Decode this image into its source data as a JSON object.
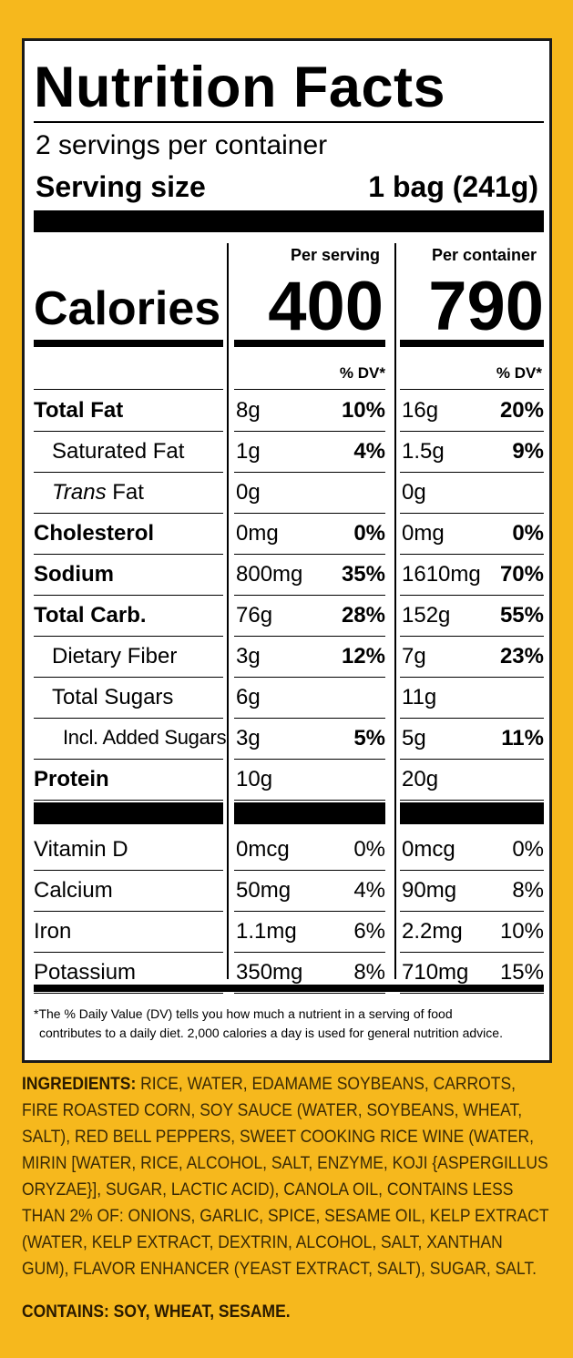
{
  "label": {
    "title": "Nutrition Facts",
    "servings_per_container": "2 servings per container",
    "serving_size_label": "Serving size",
    "serving_size_value": "1 bag (241g)",
    "per_serving_label": "Per serving",
    "per_container_label": "Per container",
    "calories_label": "Calories",
    "calories_per_serving": "400",
    "calories_per_container": "790",
    "dv_header": "% DV*",
    "nutrients": [
      {
        "name": "Total Fat",
        "serv_amt": "8g",
        "serv_dv": "10%",
        "cont_amt": "16g",
        "cont_dv": "20%"
      },
      {
        "name": "Saturated Fat",
        "serv_amt": "1g",
        "serv_dv": "4%",
        "cont_amt": "1.5g",
        "cont_dv": "9%"
      },
      {
        "name_italic": "Trans",
        "name": " Fat",
        "serv_amt": "0g",
        "serv_dv": "",
        "cont_amt": "0g",
        "cont_dv": ""
      },
      {
        "name": "Cholesterol",
        "serv_amt": "0mg",
        "serv_dv": "0%",
        "cont_amt": "0mg",
        "cont_dv": "0%"
      },
      {
        "name": "Sodium",
        "serv_amt": "800mg",
        "serv_dv": "35%",
        "cont_amt": "1610mg",
        "cont_dv": "70%"
      },
      {
        "name": "Total Carb.",
        "serv_amt": "76g",
        "serv_dv": "28%",
        "cont_amt": "152g",
        "cont_dv": "55%"
      },
      {
        "name": "Dietary Fiber",
        "serv_amt": "3g",
        "serv_dv": "12%",
        "cont_amt": "7g",
        "cont_dv": "23%"
      },
      {
        "name": "Total Sugars",
        "serv_amt": "6g",
        "serv_dv": "",
        "cont_amt": "11g",
        "cont_dv": ""
      },
      {
        "name": "Incl. Added Sugars",
        "serv_amt": "3g",
        "serv_dv": "5%",
        "cont_amt": "5g",
        "cont_dv": "11%"
      },
      {
        "name": "Protein",
        "serv_amt": "10g",
        "serv_dv": "",
        "cont_amt": "20g",
        "cont_dv": ""
      }
    ],
    "vitamins": [
      {
        "name": "Vitamin D",
        "serv_amt": "0mcg",
        "serv_dv": "0%",
        "cont_amt": "0mcg",
        "cont_dv": "0%"
      },
      {
        "name": "Calcium",
        "serv_amt": "50mg",
        "serv_dv": "4%",
        "cont_amt": "90mg",
        "cont_dv": "8%"
      },
      {
        "name": "Iron",
        "serv_amt": "1.1mg",
        "serv_dv": "6%",
        "cont_amt": "2.2mg",
        "cont_dv": "10%"
      },
      {
        "name": "Potassium",
        "serv_amt": "350mg",
        "serv_dv": "8%",
        "cont_amt": "710mg",
        "cont_dv": "15%"
      }
    ],
    "footnote_line1": "*The % Daily Value (DV) tells you how much a nutrient in a serving of food",
    "footnote_line2": "contributes to a daily diet. 2,000 calories a day is used for general nutrition advice."
  },
  "ingredients": {
    "heading": "INGREDIENTS:",
    "text": " RICE, WATER, EDAMAME SOYBEANS, CARROTS, FIRE ROASTED CORN, SOY SAUCE (WATER, SOYBEANS, WHEAT, SALT), RED BELL PEPPERS, SWEET COOKING RICE WINE (WATER, MIRIN [WATER, RICE, ALCOHOL, SALT, ENZYME, KOJI {ASPERGILLUS ORYZAE}], SUGAR, LACTIC ACID), CANOLA OIL, CONTAINS LESS THAN 2% OF: ONIONS, GARLIC, SPICE, SESAME OIL, KELP EXTRACT (WATER, KELP EXTRACT, DEXTRIN, ALCOHOL, SALT, XANTHAN GUM), FLAVOR ENHANCER (YEAST EXTRACT, SALT), SUGAR, SALT."
  },
  "contains": "CONTAINS: SOY, WHEAT, SESAME.",
  "colors": {
    "background": "#f6b81d",
    "label_bg": "#ffffff",
    "ink": "#000000"
  }
}
